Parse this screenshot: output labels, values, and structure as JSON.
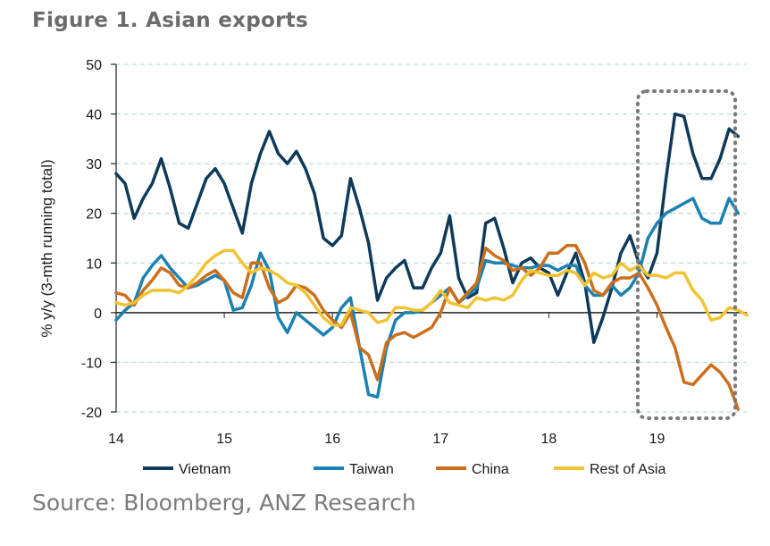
{
  "figure": {
    "title": "Figure 1. Asian exports",
    "source": "Source: Bloomberg, ANZ Research"
  },
  "chart_data": {
    "type": "line",
    "title": "Figure 1. Asian exports",
    "xlabel": "",
    "ylabel": "% y/y (3-mth running total)",
    "ylim": [
      -20,
      50
    ],
    "yticks": [
      50,
      40,
      30,
      20,
      10,
      0,
      -10,
      -20
    ],
    "xlim": [
      14,
      19.83
    ],
    "xticks": [
      {
        "value": 14,
        "label": "14"
      },
      {
        "value": 15,
        "label": "15"
      },
      {
        "value": 16,
        "label": "16"
      },
      {
        "value": 17,
        "label": "17"
      },
      {
        "value": 18,
        "label": "18"
      },
      {
        "value": 19,
        "label": "19"
      }
    ],
    "grid": true,
    "legend_position": "bottom",
    "annotation": "dotted box highlighting 2019",
    "x_start": 14,
    "x_step": 0.08333,
    "series": [
      {
        "name": "Vietnam",
        "color": "#0e3a5a",
        "values": [
          28,
          26,
          19,
          23,
          26,
          31,
          25,
          18,
          17,
          22,
          27,
          29,
          26,
          21,
          16,
          26,
          32,
          36.5,
          32,
          30,
          32.5,
          29,
          24,
          15,
          13.5,
          15.5,
          27,
          21,
          14,
          2.5,
          7,
          9,
          10.5,
          5,
          5,
          9,
          12,
          19.5,
          7,
          3,
          4,
          18,
          19,
          13,
          6,
          10,
          11,
          9,
          8,
          3.5,
          8,
          12,
          6,
          -6,
          -1,
          5,
          12,
          15.5,
          10,
          7,
          12,
          27,
          40,
          39.5,
          32,
          27,
          27,
          31,
          37,
          35.5
        ]
      },
      {
        "name": "Taiwan",
        "color": "#1b81b2",
        "values": [
          -1.5,
          0.5,
          2,
          7,
          9.5,
          11.5,
          9,
          7,
          5,
          5.5,
          6.5,
          7.5,
          6.5,
          0.5,
          1,
          5.5,
          12,
          8.5,
          -1,
          -4,
          0,
          -1.5,
          -3,
          -4.5,
          -3,
          1,
          3,
          -7,
          -16.5,
          -17,
          -7,
          -1.5,
          0,
          0,
          0.5,
          2,
          3.5,
          5,
          2,
          3.5,
          5,
          10.5,
          10,
          10,
          9.5,
          9,
          9,
          9.5,
          9.5,
          8.5,
          9.5,
          9.5,
          5.5,
          3.5,
          3.5,
          5.5,
          3.5,
          5,
          8,
          15,
          18,
          20,
          21,
          22,
          23,
          19,
          18,
          18,
          23,
          20
        ]
      },
      {
        "name": "China",
        "color": "#cc6f1c",
        "values": [
          4,
          3.5,
          1.5,
          4.5,
          6.5,
          9,
          8,
          5.5,
          5,
          6,
          7.5,
          8.5,
          6.5,
          4,
          3,
          10,
          10,
          5,
          2,
          3,
          5.5,
          5,
          3.5,
          0.5,
          -1.5,
          -3,
          0,
          -7,
          -8.5,
          -13.5,
          -6,
          -4.5,
          -4,
          -5,
          -4,
          -3,
          0,
          5,
          2,
          4,
          6,
          13,
          11.5,
          10.5,
          8.5,
          9,
          7.5,
          9,
          12,
          12,
          13.5,
          13.5,
          10,
          4.5,
          3.5,
          6,
          7,
          7,
          8,
          5,
          1.5,
          -3,
          -7,
          -14,
          -14.5,
          -12.5,
          -10.5,
          -12,
          -14.5,
          -19.5
        ]
      },
      {
        "name": "Rest of Asia",
        "color": "#f1c232",
        "values": [
          2,
          1.5,
          2,
          3.5,
          4.5,
          4.5,
          4.5,
          4,
          5.5,
          7.5,
          10,
          11.5,
          12.5,
          12.5,
          10,
          8,
          9,
          8.5,
          7.5,
          6,
          5.5,
          4,
          1.5,
          -1,
          -2.5,
          -2.5,
          1,
          0.5,
          0,
          -2,
          -1.5,
          1,
          1,
          0.5,
          0.5,
          2,
          4.5,
          2,
          1.5,
          1,
          3,
          2.5,
          3,
          2.5,
          3.5,
          6.5,
          8.5,
          8,
          7.5,
          7.5,
          8.5,
          8,
          5.5,
          8,
          7,
          7.5,
          10,
          8.5,
          9.5,
          7.5,
          7.5,
          7,
          8,
          8,
          4.5,
          2.5,
          -1.5,
          -1,
          1,
          0.5,
          -0.5
        ]
      }
    ]
  }
}
